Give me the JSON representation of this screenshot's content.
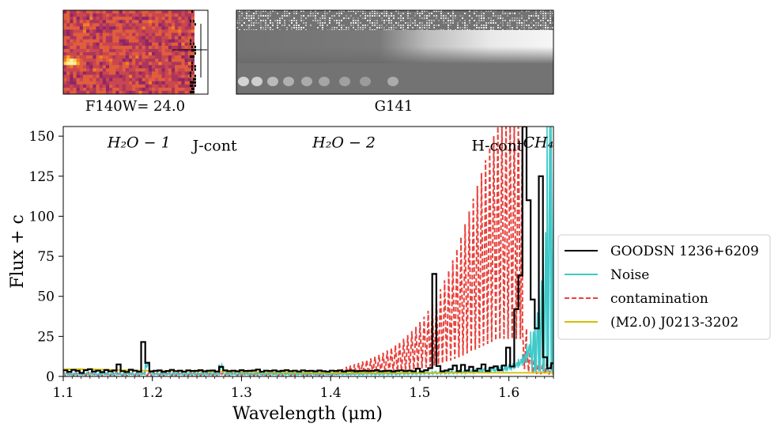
{
  "thumbnails": {
    "direct_label": "F140W= 24.0",
    "grism_label": "G141"
  },
  "chart_data": {
    "type": "line",
    "xlabel": "Wavelength (μm)",
    "ylabel": "Flux + c",
    "xlim": [
      1.1,
      1.65
    ],
    "ylim": [
      0,
      156
    ],
    "x_ticks": [
      "1.1",
      "1.2",
      "1.3",
      "1.4",
      "1.5",
      "1.6"
    ],
    "y_ticks": [
      "0",
      "25",
      "50",
      "75",
      "100",
      "125",
      "150"
    ],
    "band_labels": [
      {
        "text": "H₂O − 1",
        "x": 1.185,
        "y": 143,
        "italic": true
      },
      {
        "text": "J-cont",
        "x": 1.27,
        "y": 141,
        "italic": false
      },
      {
        "text": "H₂O − 2",
        "x": 1.415,
        "y": 143,
        "italic": true
      },
      {
        "text": "H-cont",
        "x": 1.587,
        "y": 141,
        "italic": false
      },
      {
        "text": "CH₄",
        "x": 1.633,
        "y": 143,
        "italic": true
      }
    ],
    "legend_position": "right",
    "series": [
      {
        "name": "GOODSN 1236+6209",
        "color": "#000000",
        "style": "steps",
        "x_start": 1.1,
        "x_step": 0.0046,
        "base": [
          3.8,
          2.9,
          4.1,
          3.5,
          2.2,
          3.9,
          4.5,
          3.1,
          3.6,
          2.7,
          4.0,
          3.2,
          3.7,
          7.5,
          3.3,
          2.8,
          4.2,
          3.6,
          3.0,
          3.9,
          4.4,
          3.1,
          3.5,
          3.8,
          2.9,
          3.4,
          4.1,
          3.3,
          3.6,
          3.0,
          3.8,
          3.4,
          3.5,
          3.9,
          3.2,
          3.6,
          3.7,
          3.1,
          3.5,
          3.8,
          3.3,
          3.6,
          3.2,
          3.9,
          3.4,
          3.5,
          3.7,
          4.3,
          3.0,
          3.6,
          3.4,
          3.8,
          3.2,
          3.5,
          3.9,
          3.3,
          3.6,
          3.1,
          3.8,
          3.4,
          3.5,
          3.2,
          3.7,
          3.3,
          3.0,
          3.6,
          3.4,
          3.8,
          3.1,
          3.5,
          3.7,
          3.2,
          3.4,
          3.6,
          3.3,
          3.5,
          3.9,
          3.2,
          3.4,
          3.6,
          3.1,
          3.5,
          3.8,
          3.3,
          3.6,
          3.2,
          4.8,
          3.1,
          3.9,
          5.2,
          3.4,
          6.5,
          3.2,
          3.7,
          4.5,
          6.8,
          3.3,
          7.2,
          3.6,
          6.0,
          3.5,
          4.9,
          7.5,
          3.4,
          5.5,
          6.3,
          3.9,
          6.8,
          5.0,
          6.2,
          4.6,
          3.8,
          7.0,
          4.2,
          3.6,
          7.8,
          4.4,
          9.0,
          5.1,
          8.2,
          4.7,
          5.8,
          3.9
        ],
        "overrides": [
          {
            "x": 1.1874,
            "y": 21.5
          },
          {
            "x": 1.192,
            "y": 8.5
          },
          {
            "x": 1.2748,
            "y": 6.0
          },
          {
            "x": 1.5122,
            "y": 64.0
          },
          {
            "x": 1.595,
            "y": 18.0
          },
          {
            "x": 1.6042,
            "y": 42.0
          },
          {
            "x": 1.6088,
            "y": 63.0
          },
          {
            "x": 1.6134,
            "y": 156.0
          },
          {
            "x": 1.618,
            "y": 110.0
          },
          {
            "x": 1.6226,
            "y": 48.0
          },
          {
            "x": 1.6272,
            "y": 30.0
          },
          {
            "x": 1.6318,
            "y": 125.0
          },
          {
            "x": 1.6364,
            "y": 12.0
          }
        ]
      },
      {
        "name": "Noise",
        "color": "#3fc9c9",
        "style": "steps",
        "x_start": 1.1,
        "x_step": 0.0046,
        "base": [
          2.0,
          1.8,
          2.1,
          1.9,
          2.0,
          2.2,
          1.9,
          2.0,
          1.8,
          2.1,
          2.0,
          1.9,
          2.1,
          2.0,
          1.8,
          2.0,
          2.1,
          1.9,
          2.0,
          2.2,
          9.0,
          2.0,
          1.9,
          2.1,
          2.0,
          1.8,
          2.0,
          2.1,
          1.9,
          2.0,
          2.1,
          1.9,
          2.0,
          2.1,
          1.9,
          2.0,
          2.2,
          1.9,
          7.5,
          2.0,
          2.1,
          1.9,
          2.0,
          2.1,
          1.9,
          2.0,
          2.1,
          2.0,
          1.9,
          2.1,
          2.0,
          1.9,
          2.0,
          2.1,
          1.9,
          2.0,
          2.2,
          1.9,
          2.0,
          2.1,
          2.0,
          1.9,
          2.1,
          2.0,
          1.9,
          2.0,
          2.1,
          1.9,
          2.0,
          2.1,
          2.0,
          2.1,
          1.9,
          2.0,
          2.2,
          2.0,
          2.1,
          1.9,
          2.3,
          2.0,
          2.2,
          2.1,
          2.4,
          2.2,
          2.5,
          2.3,
          2.6,
          2.4,
          2.8,
          2.5,
          3.0,
          2.7,
          3.2,
          2.9,
          3.5,
          3.1,
          3.8,
          3.4,
          4.2,
          3.8,
          4.6,
          4.2,
          5.0,
          4.6,
          5.5,
          5.2,
          6.2,
          5.8,
          7.0,
          7.5,
          9.0,
          11.0,
          14.0,
          20.0,
          28.0,
          40.0,
          60.0,
          90.0,
          156.0,
          156.0,
          156.0,
          156.0,
          156.0
        ],
        "high_freq": true
      },
      {
        "name": "contamination",
        "color": "#e8423c",
        "style": "dashed",
        "x_start": 1.1,
        "x_step": 0.0046,
        "base": [
          3.0,
          3.1,
          3.0,
          3.2,
          3.1,
          3.0,
          3.2,
          3.1,
          3.0,
          3.1,
          3.2,
          3.0,
          3.1,
          3.1,
          3.0,
          3.2,
          3.1,
          3.0,
          3.1,
          3.2,
          3.0,
          3.1,
          3.0,
          3.2,
          3.1,
          3.0,
          3.1,
          3.0,
          3.1,
          3.0,
          3.1,
          3.0,
          3.2,
          3.1,
          3.0,
          3.1,
          3.0,
          3.1,
          3.0,
          3.1,
          3.0,
          3.1,
          3.0,
          3.1,
          3.0,
          3.1,
          3.0,
          3.1,
          3.0,
          3.1,
          3.0,
          3.1,
          3.0,
          3.1,
          3.0,
          3.1,
          3.0,
          3.1,
          3.0,
          3.1,
          3.0,
          3.1,
          3.0,
          3.1,
          3.2,
          3.4,
          3.8,
          4.5,
          5.2,
          6.0,
          6.8,
          7.6,
          8.4,
          9.3,
          10.2,
          11.2,
          12.3,
          13.5,
          14.8,
          16.2,
          17.8,
          19.5,
          21.4,
          23.5,
          25.8,
          28.3,
          31.0,
          34.0,
          37.3,
          41.0,
          45.0,
          49.5,
          54.5,
          60.0,
          66.0,
          72.5,
          79.5,
          87.0,
          95.0,
          103.0,
          111.0,
          119.0,
          127.0,
          135.0,
          143.0,
          150.0,
          156.0,
          156.0,
          156.0,
          156.0,
          156.0,
          156.0,
          30.0,
          20.0,
          14.0,
          10.0,
          9.0,
          8.5,
          8.0,
          8.5,
          9.0,
          8.5,
          8.0
        ],
        "oscillate": true
      },
      {
        "name": "(M2.0) J0213-3202",
        "color": "#d4bf00",
        "style": "solid",
        "x_start": 1.1,
        "x_step": 0.0046,
        "base": [
          4.5,
          4.6,
          4.4,
          4.5,
          4.6,
          4.5,
          4.4,
          4.5,
          4.4,
          4.3,
          4.2,
          4.2,
          4.1,
          4.0,
          3.9,
          3.9,
          3.8,
          3.7,
          3.7,
          3.6,
          3.6,
          3.5,
          3.5,
          3.4,
          3.4,
          3.4,
          3.3,
          3.3,
          3.3,
          3.2,
          3.2,
          3.2,
          3.1,
          3.1,
          3.1,
          3.0,
          3.0,
          3.0,
          3.0,
          2.9,
          2.9,
          2.9,
          2.9,
          2.8,
          2.8,
          2.8,
          2.8,
          2.7,
          2.7,
          2.7,
          2.7,
          2.6,
          2.6,
          2.6,
          2.6,
          2.5,
          2.5,
          2.5,
          2.5,
          2.5,
          2.4,
          2.4,
          2.4,
          2.4,
          2.4,
          2.3,
          2.3,
          2.3,
          2.3,
          2.3,
          2.3,
          2.3,
          2.3,
          2.3,
          2.3,
          2.3,
          2.3,
          2.3,
          2.3,
          2.3,
          2.3,
          2.3,
          2.3,
          2.3,
          2.3,
          2.3,
          2.3,
          2.3,
          2.3,
          2.3,
          2.3,
          2.3,
          2.3,
          2.3,
          2.3,
          2.3,
          2.3,
          2.3,
          2.3,
          2.3,
          2.3,
          2.3,
          2.3,
          2.3,
          2.3,
          2.3,
          2.3,
          2.3,
          2.3,
          2.3,
          2.3,
          2.3,
          2.3,
          2.3,
          2.3,
          2.3,
          2.3,
          2.3,
          2.3,
          2.3,
          2.3,
          2.3,
          2.3
        ]
      }
    ]
  }
}
